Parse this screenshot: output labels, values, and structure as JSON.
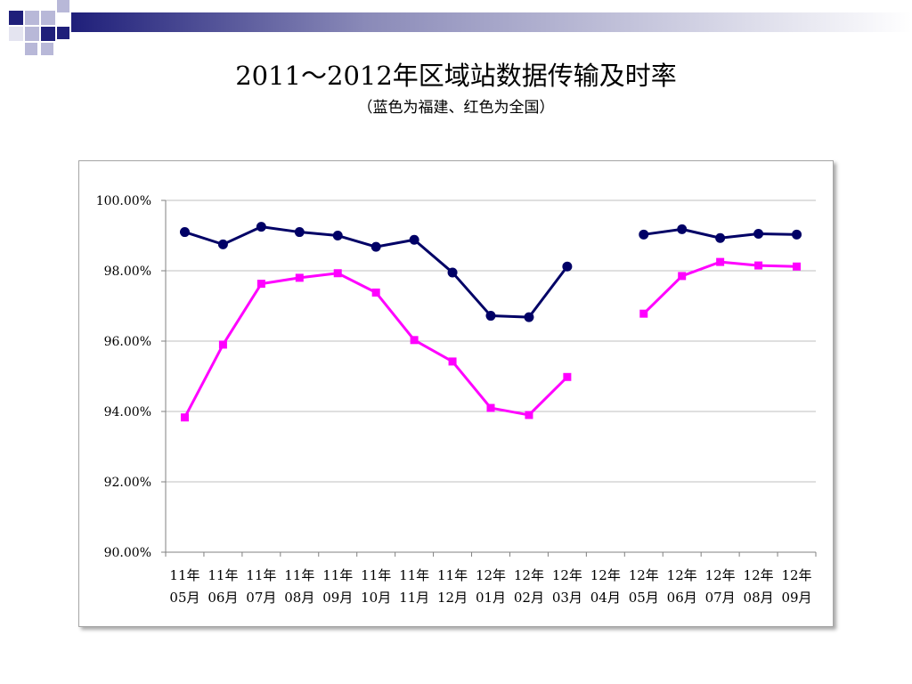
{
  "slide": {
    "title": "2011～2012年区域站数据传输及时率",
    "subtitle": "（蓝色为福建、红色为全国）"
  },
  "colors": {
    "fujian": "#000066",
    "national": "#ff00ff",
    "gridline": "#bfbfbf",
    "axis": "#808080",
    "corner_dark": "#1f1f7a",
    "corner_light": "#b8b8d8"
  },
  "chart_data": {
    "type": "line",
    "categories": [
      [
        "11年",
        "05月"
      ],
      [
        "11年",
        "06月"
      ],
      [
        "11年",
        "07月"
      ],
      [
        "11年",
        "08月"
      ],
      [
        "11年",
        "09月"
      ],
      [
        "11年",
        "10月"
      ],
      [
        "11年",
        "11月"
      ],
      [
        "11年",
        "12月"
      ],
      [
        "12年",
        "01月"
      ],
      [
        "12年",
        "02月"
      ],
      [
        "12年",
        "03月"
      ],
      [
        "12年",
        "04月"
      ],
      [
        "12年",
        "05月"
      ],
      [
        "12年",
        "06月"
      ],
      [
        "12年",
        "07月"
      ],
      [
        "12年",
        "08月"
      ],
      [
        "12年",
        "09月"
      ]
    ],
    "ylim": [
      90,
      100
    ],
    "yticks": [
      {
        "value": 100,
        "label": "100.00%"
      },
      {
        "value": 98,
        "label": "98.00%"
      },
      {
        "value": 96,
        "label": "96.00%"
      },
      {
        "value": 94,
        "label": "94.00%"
      },
      {
        "value": 92,
        "label": "92.00%"
      },
      {
        "value": 90,
        "label": "90.00%"
      }
    ],
    "grid": true,
    "series": [
      {
        "key": "fujian",
        "marker": "circle",
        "values": [
          99.1,
          98.75,
          99.25,
          99.1,
          99.0,
          98.68,
          98.88,
          97.95,
          96.72,
          96.68,
          98.12,
          null,
          99.03,
          99.18,
          98.93,
          99.05,
          99.03
        ]
      },
      {
        "key": "national",
        "marker": "square",
        "values": [
          93.83,
          95.9,
          97.63,
          97.8,
          97.93,
          97.38,
          96.03,
          95.42,
          94.1,
          93.9,
          94.98,
          null,
          96.78,
          97.85,
          98.25,
          98.15,
          98.12
        ]
      }
    ]
  }
}
